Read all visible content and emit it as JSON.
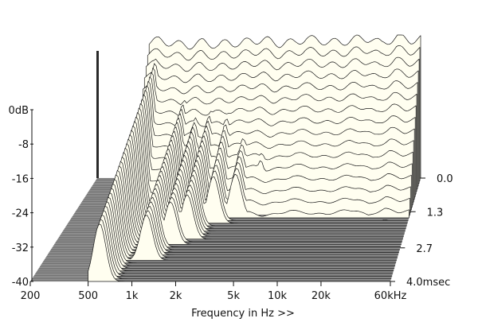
{
  "chart_data": {
    "type": "area",
    "subtype": "cumulative-spectral-decay-waterfall",
    "title": "",
    "xlabel": "Frequency in Hz >>",
    "ylabel": "",
    "zlabel": "",
    "x_scale": "log",
    "xlim_hz": [
      200,
      60000
    ],
    "ylim_db": [
      -40,
      0
    ],
    "zlim_msec": [
      0,
      4.0
    ],
    "x_ticks": [
      {
        "value": 200,
        "label": "200"
      },
      {
        "value": 500,
        "label": "500"
      },
      {
        "value": 1000,
        "label": "1k"
      },
      {
        "value": 2000,
        "label": "2k"
      },
      {
        "value": 5000,
        "label": "5k"
      },
      {
        "value": 10000,
        "label": "10k"
      },
      {
        "value": 20000,
        "label": "20k"
      },
      {
        "value": 60000,
        "label": "60kHz"
      }
    ],
    "y_ticks": [
      {
        "value": 0,
        "label": "0dB"
      },
      {
        "value": -8,
        "label": "-8"
      },
      {
        "value": -16,
        "label": "-16"
      },
      {
        "value": -24,
        "label": "-24"
      },
      {
        "value": -32,
        "label": "-32"
      },
      {
        "value": -40,
        "label": "-40"
      }
    ],
    "z_ticks": [
      {
        "value": 0.0,
        "label": "0.0"
      },
      {
        "value": 1.3,
        "label": "1.3"
      },
      {
        "value": 2.7,
        "label": "2.7"
      },
      {
        "value": 4.0,
        "label": "4.0msec"
      }
    ],
    "colors": {
      "fill": "#fffef0",
      "line": "#1a1a1a",
      "floor": "#6e6e6e",
      "floor_line": "#c8c8c8",
      "wall": "#2a2a2a"
    },
    "slices": 40,
    "series": [
      {
        "time_msec": 0.0,
        "x_hz": [
          480,
          600,
          800,
          1000,
          1300,
          1700,
          2000,
          2500,
          3000,
          4000,
          5000,
          6500,
          8000,
          10000,
          12000,
          15000,
          20000,
          25000,
          30000,
          40000,
          50000,
          60000
        ],
        "level_db": [
          -2,
          -1.5,
          -2.5,
          -3,
          -2,
          -3,
          -2,
          -2.5,
          -1.5,
          -1.5,
          -2.5,
          -2,
          -1,
          -1.5,
          -2,
          -2,
          -1,
          -1,
          -2.5,
          -0.5,
          -1.5,
          -1
        ]
      }
    ],
    "resonances": [
      {
        "freq_hz": 600,
        "start_db": -4,
        "decay_msec": 4.0
      },
      {
        "freq_hz": 1050,
        "start_db": -12,
        "decay_msec": 3.2
      },
      {
        "freq_hz": 1350,
        "start_db": -14,
        "decay_msec": 2.6
      },
      {
        "freq_hz": 1700,
        "start_db": -13,
        "decay_msec": 2.4
      },
      {
        "freq_hz": 2300,
        "start_db": -12,
        "decay_msec": 1.8
      },
      {
        "freq_hz": 3200,
        "start_db": -14,
        "decay_msec": 1.6
      },
      {
        "freq_hz": 4500,
        "start_db": -13,
        "decay_msec": 1.2
      },
      {
        "freq_hz": 7000,
        "start_db": -15,
        "decay_msec": 1.0
      },
      {
        "freq_hz": 12000,
        "start_db": -17,
        "decay_msec": 0.8
      },
      {
        "freq_hz": 20000,
        "start_db": -16,
        "decay_msec": 0.6
      },
      {
        "freq_hz": 35000,
        "start_db": -18,
        "decay_msec": 0.4
      }
    ]
  }
}
